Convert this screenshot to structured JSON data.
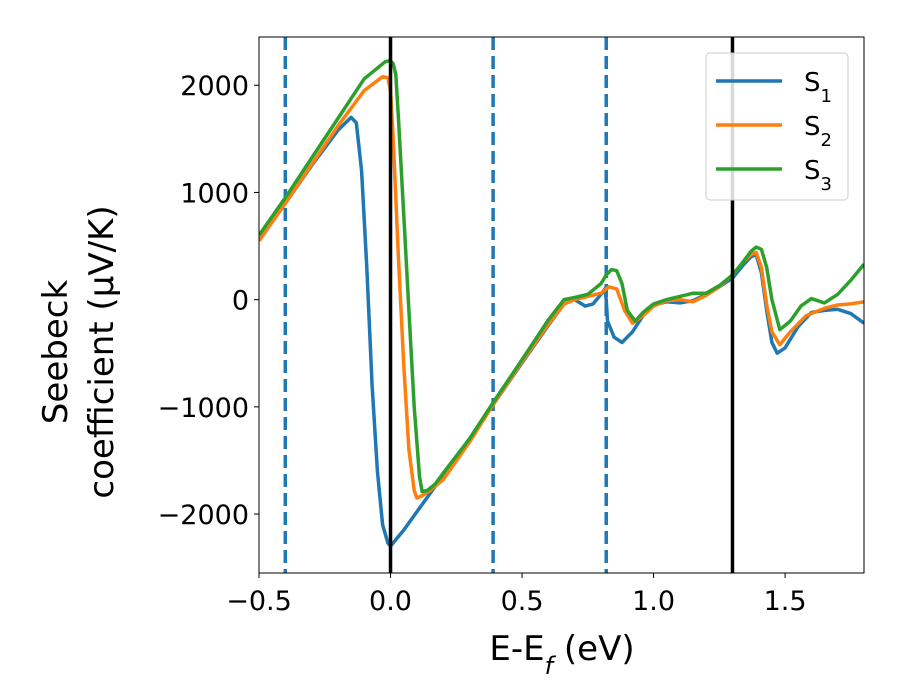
{
  "chart_data": {
    "type": "line",
    "xlabel": "E-E_f (eV)",
    "ylabel_line1": "Seebeck",
    "ylabel_line2": "coefficient  (μV/K)",
    "xlim": [
      -0.5,
      1.8
    ],
    "ylim": [
      -2550,
      2450
    ],
    "x_ticks": [
      -0.5,
      0.0,
      0.5,
      1.0,
      1.5
    ],
    "x_tick_labels": [
      "−0.5",
      "0.0",
      "0.5",
      "1.0",
      "1.5"
    ],
    "y_ticks": [
      -2000,
      -1000,
      0,
      1000,
      2000
    ],
    "y_tick_labels": [
      "−2000",
      "−1000",
      "0",
      "1000",
      "2000"
    ],
    "grid": false,
    "legend_position": "top-right",
    "vlines_solid": [
      0.0,
      1.3
    ],
    "vlines_dashed": [
      -0.4,
      0.39,
      0.82
    ],
    "series": [
      {
        "name": "S1",
        "label_main": "S",
        "label_sub": "1",
        "color": "#1f77b4",
        "x": [
          -0.5,
          -0.4,
          -0.3,
          -0.2,
          -0.15,
          -0.13,
          -0.11,
          -0.09,
          -0.07,
          -0.05,
          -0.03,
          -0.01,
          0.0,
          0.05,
          0.1,
          0.2,
          0.3,
          0.39,
          0.5,
          0.6,
          0.66,
          0.7,
          0.74,
          0.77,
          0.8,
          0.815,
          0.82,
          0.825,
          0.85,
          0.88,
          0.92,
          0.96,
          1.0,
          1.05,
          1.1,
          1.15,
          1.2,
          1.25,
          1.3,
          1.34,
          1.37,
          1.39,
          1.41,
          1.43,
          1.45,
          1.47,
          1.5,
          1.55,
          1.6,
          1.65,
          1.7,
          1.75,
          1.8
        ],
        "y": [
          550,
          900,
          1250,
          1580,
          1700,
          1650,
          1200,
          300,
          -800,
          -1600,
          -2100,
          -2270,
          -2300,
          -2150,
          -1980,
          -1640,
          -1300,
          -980,
          -590,
          -240,
          -40,
          0,
          -60,
          -40,
          50,
          100,
          0,
          -200,
          -350,
          -400,
          -300,
          -150,
          -50,
          -20,
          -30,
          -10,
          50,
          120,
          200,
          320,
          400,
          420,
          250,
          -100,
          -400,
          -500,
          -450,
          -250,
          -120,
          -100,
          -90,
          -130,
          -220
        ]
      },
      {
        "name": "S2",
        "label_main": "S",
        "label_sub": "2",
        "color": "#ff7f0e",
        "x": [
          -0.5,
          -0.4,
          -0.3,
          -0.2,
          -0.1,
          -0.03,
          -0.01,
          0.0,
          0.01,
          0.03,
          0.05,
          0.07,
          0.09,
          0.1,
          0.12,
          0.15,
          0.2,
          0.3,
          0.39,
          0.5,
          0.6,
          0.66,
          0.7,
          0.75,
          0.8,
          0.83,
          0.86,
          0.89,
          0.92,
          0.96,
          1.0,
          1.05,
          1.1,
          1.15,
          1.2,
          1.25,
          1.3,
          1.34,
          1.37,
          1.39,
          1.41,
          1.43,
          1.45,
          1.48,
          1.52,
          1.58,
          1.65,
          1.7,
          1.75,
          1.8
        ],
        "y": [
          550,
          900,
          1260,
          1620,
          1950,
          2080,
          2070,
          1950,
          1500,
          400,
          -600,
          -1400,
          -1780,
          -1850,
          -1830,
          -1780,
          -1680,
          -1330,
          -980,
          -580,
          -230,
          -40,
          0,
          30,
          60,
          120,
          100,
          -100,
          -220,
          -150,
          -60,
          -10,
          0,
          -20,
          40,
          120,
          230,
          350,
          420,
          440,
          300,
          -50,
          -300,
          -420,
          -300,
          -150,
          -80,
          -50,
          -40,
          -20
        ]
      },
      {
        "name": "S3",
        "label_main": "S",
        "label_sub": "3",
        "color": "#2ca02c",
        "x": [
          -0.5,
          -0.4,
          -0.3,
          -0.2,
          -0.1,
          -0.02,
          0.0,
          0.01,
          0.02,
          0.03,
          0.05,
          0.07,
          0.09,
          0.11,
          0.12,
          0.14,
          0.17,
          0.2,
          0.3,
          0.39,
          0.5,
          0.6,
          0.66,
          0.7,
          0.75,
          0.8,
          0.82,
          0.84,
          0.86,
          0.88,
          0.9,
          0.93,
          0.96,
          1.0,
          1.05,
          1.1,
          1.15,
          1.2,
          1.25,
          1.3,
          1.34,
          1.37,
          1.39,
          1.41,
          1.43,
          1.45,
          1.48,
          1.52,
          1.56,
          1.6,
          1.65,
          1.7,
          1.75,
          1.8
        ],
        "y": [
          600,
          950,
          1320,
          1690,
          2060,
          2220,
          2230,
          2200,
          2100,
          1700,
          800,
          -100,
          -1000,
          -1650,
          -1790,
          -1780,
          -1720,
          -1620,
          -1300,
          -960,
          -560,
          -190,
          0,
          20,
          50,
          150,
          230,
          280,
          270,
          150,
          -100,
          -200,
          -120,
          -40,
          0,
          30,
          60,
          60,
          130,
          230,
          350,
          450,
          490,
          470,
          300,
          0,
          -280,
          -200,
          -60,
          10,
          -30,
          50,
          180,
          330
        ]
      }
    ]
  }
}
